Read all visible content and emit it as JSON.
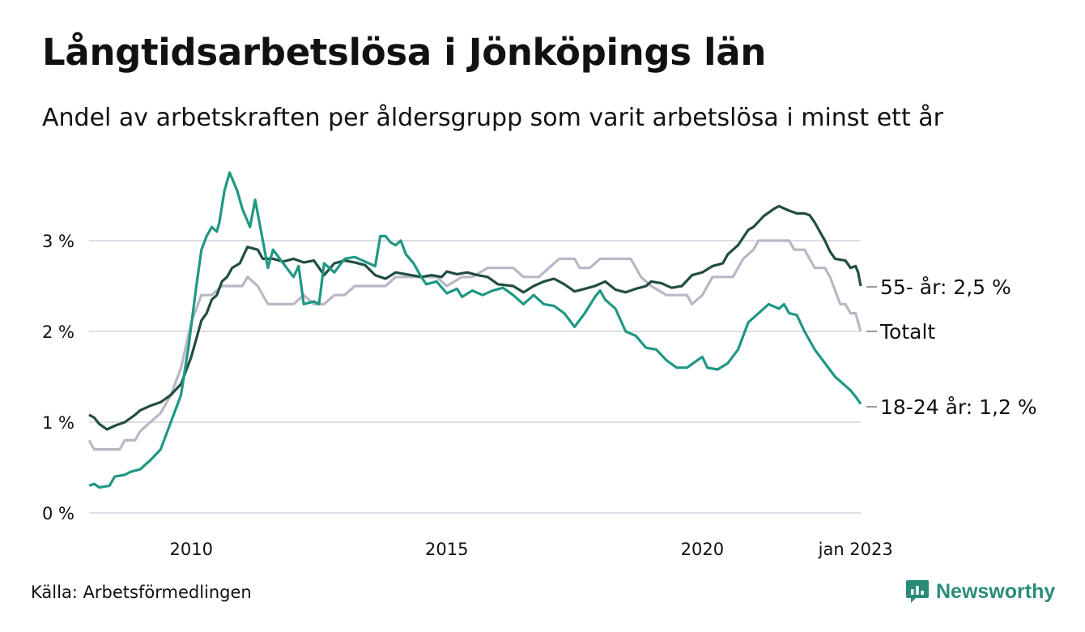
{
  "title": "Långtidsarbetslösa i Jönköpings län",
  "subtitle": "Andel av arbetskraften per åldersgrupp som varit arbetslösa i minst ett år",
  "source": "Källa: Arbetsförmedlingen",
  "brand": "Newsworthy",
  "chart_data": {
    "type": "line",
    "ylim": [
      0,
      3.4
    ],
    "y_ticks": [
      {
        "value": 0,
        "label": "0 %"
      },
      {
        "value": 1,
        "label": "1 %"
      },
      {
        "value": 2,
        "label": "2 %"
      },
      {
        "value": 3,
        "label": "3 %"
      }
    ],
    "x_ticks": [
      {
        "value": 2010.0,
        "label": "2010"
      },
      {
        "value": 2015.0,
        "label": "2015"
      },
      {
        "value": 2020.0,
        "label": "2020"
      },
      {
        "value": 2023.0,
        "label": "jan 2023"
      }
    ],
    "xlim": [
      2008.0,
      2023.1
    ],
    "grid": true,
    "series": [
      {
        "name": "Totalt",
        "end_label": "Totalt",
        "color": "#b9b7c6",
        "points": [
          [
            2008.0,
            0.8
          ],
          [
            2008.1,
            0.7
          ],
          [
            2008.6,
            0.7
          ],
          [
            2008.7,
            0.8
          ],
          [
            2008.9,
            0.8
          ],
          [
            2009.0,
            0.9
          ],
          [
            2009.2,
            1.0
          ],
          [
            2009.4,
            1.1
          ],
          [
            2009.6,
            1.3
          ],
          [
            2009.8,
            1.6
          ],
          [
            2010.0,
            2.1
          ],
          [
            2010.2,
            2.4
          ],
          [
            2010.4,
            2.4
          ],
          [
            2010.6,
            2.5
          ],
          [
            2011.0,
            2.5
          ],
          [
            2011.1,
            2.6
          ],
          [
            2011.3,
            2.5
          ],
          [
            2011.5,
            2.3
          ],
          [
            2012.0,
            2.3
          ],
          [
            2012.2,
            2.4
          ],
          [
            2012.4,
            2.3
          ],
          [
            2012.6,
            2.3
          ],
          [
            2012.8,
            2.4
          ],
          [
            2013.0,
            2.4
          ],
          [
            2013.2,
            2.5
          ],
          [
            2013.8,
            2.5
          ],
          [
            2014.0,
            2.6
          ],
          [
            2014.8,
            2.6
          ],
          [
            2015.0,
            2.5
          ],
          [
            2015.3,
            2.6
          ],
          [
            2015.5,
            2.6
          ],
          [
            2015.8,
            2.7
          ],
          [
            2016.3,
            2.7
          ],
          [
            2016.5,
            2.6
          ],
          [
            2016.8,
            2.6
          ],
          [
            2017.0,
            2.7
          ],
          [
            2017.2,
            2.8
          ],
          [
            2017.5,
            2.8
          ],
          [
            2017.6,
            2.7
          ],
          [
            2017.8,
            2.7
          ],
          [
            2018.0,
            2.8
          ],
          [
            2018.6,
            2.8
          ],
          [
            2018.8,
            2.6
          ],
          [
            2019.0,
            2.5
          ],
          [
            2019.3,
            2.4
          ],
          [
            2019.7,
            2.4
          ],
          [
            2019.8,
            2.3
          ],
          [
            2020.0,
            2.4
          ],
          [
            2020.2,
            2.6
          ],
          [
            2020.6,
            2.6
          ],
          [
            2020.8,
            2.8
          ],
          [
            2021.0,
            2.9
          ],
          [
            2021.1,
            3.0
          ],
          [
            2021.7,
            3.0
          ],
          [
            2021.8,
            2.9
          ],
          [
            2022.0,
            2.9
          ],
          [
            2022.1,
            2.8
          ],
          [
            2022.2,
            2.7
          ],
          [
            2022.4,
            2.7
          ],
          [
            2022.5,
            2.6
          ],
          [
            2022.7,
            2.3
          ],
          [
            2022.8,
            2.3
          ],
          [
            2022.9,
            2.2
          ],
          [
            2023.0,
            2.2
          ],
          [
            2023.1,
            2.0
          ]
        ]
      },
      {
        "name": "55- år",
        "end_label": "55- år: 2,5 %",
        "color": "#224d42",
        "points": [
          [
            2008.0,
            1.08
          ],
          [
            2008.1,
            1.05
          ],
          [
            2008.2,
            0.98
          ],
          [
            2008.35,
            0.92
          ],
          [
            2008.5,
            0.96
          ],
          [
            2008.7,
            1.0
          ],
          [
            2008.9,
            1.08
          ],
          [
            2009.0,
            1.13
          ],
          [
            2009.2,
            1.18
          ],
          [
            2009.4,
            1.22
          ],
          [
            2009.6,
            1.3
          ],
          [
            2009.8,
            1.42
          ],
          [
            2010.0,
            1.72
          ],
          [
            2010.2,
            2.12
          ],
          [
            2010.3,
            2.2
          ],
          [
            2010.4,
            2.35
          ],
          [
            2010.5,
            2.4
          ],
          [
            2010.6,
            2.55
          ],
          [
            2010.7,
            2.6
          ],
          [
            2010.8,
            2.7
          ],
          [
            2010.95,
            2.75
          ],
          [
            2011.1,
            2.93
          ],
          [
            2011.3,
            2.9
          ],
          [
            2011.4,
            2.8
          ],
          [
            2011.6,
            2.8
          ],
          [
            2011.8,
            2.77
          ],
          [
            2012.0,
            2.8
          ],
          [
            2012.2,
            2.76
          ],
          [
            2012.4,
            2.78
          ],
          [
            2012.6,
            2.62
          ],
          [
            2012.8,
            2.75
          ],
          [
            2013.0,
            2.78
          ],
          [
            2013.2,
            2.76
          ],
          [
            2013.4,
            2.73
          ],
          [
            2013.6,
            2.62
          ],
          [
            2013.8,
            2.58
          ],
          [
            2014.0,
            2.65
          ],
          [
            2014.3,
            2.62
          ],
          [
            2014.5,
            2.6
          ],
          [
            2014.7,
            2.62
          ],
          [
            2014.9,
            2.6
          ],
          [
            2015.0,
            2.66
          ],
          [
            2015.2,
            2.63
          ],
          [
            2015.4,
            2.65
          ],
          [
            2015.6,
            2.62
          ],
          [
            2015.8,
            2.6
          ],
          [
            2016.0,
            2.52
          ],
          [
            2016.3,
            2.5
          ],
          [
            2016.5,
            2.43
          ],
          [
            2016.7,
            2.5
          ],
          [
            2016.9,
            2.55
          ],
          [
            2017.1,
            2.58
          ],
          [
            2017.3,
            2.52
          ],
          [
            2017.5,
            2.44
          ],
          [
            2017.7,
            2.47
          ],
          [
            2017.9,
            2.5
          ],
          [
            2018.1,
            2.55
          ],
          [
            2018.3,
            2.46
          ],
          [
            2018.5,
            2.43
          ],
          [
            2018.7,
            2.47
          ],
          [
            2018.9,
            2.5
          ],
          [
            2019.0,
            2.55
          ],
          [
            2019.2,
            2.53
          ],
          [
            2019.4,
            2.48
          ],
          [
            2019.6,
            2.5
          ],
          [
            2019.8,
            2.62
          ],
          [
            2020.0,
            2.65
          ],
          [
            2020.2,
            2.72
          ],
          [
            2020.4,
            2.75
          ],
          [
            2020.5,
            2.85
          ],
          [
            2020.7,
            2.95
          ],
          [
            2020.9,
            3.12
          ],
          [
            2021.0,
            3.15
          ],
          [
            2021.2,
            3.27
          ],
          [
            2021.4,
            3.35
          ],
          [
            2021.5,
            3.38
          ],
          [
            2021.7,
            3.33
          ],
          [
            2021.85,
            3.3
          ],
          [
            2022.0,
            3.3
          ],
          [
            2022.1,
            3.28
          ],
          [
            2022.2,
            3.2
          ],
          [
            2022.3,
            3.1
          ],
          [
            2022.4,
            3.0
          ],
          [
            2022.5,
            2.88
          ],
          [
            2022.6,
            2.8
          ],
          [
            2022.8,
            2.78
          ],
          [
            2022.9,
            2.7
          ],
          [
            2023.0,
            2.72
          ],
          [
            2023.05,
            2.65
          ],
          [
            2023.1,
            2.5
          ]
        ]
      },
      {
        "name": "18-24 år",
        "end_label": "18-24 år: 1,2 %",
        "color": "#1f9884",
        "points": [
          [
            2008.0,
            0.3
          ],
          [
            2008.1,
            0.32
          ],
          [
            2008.2,
            0.28
          ],
          [
            2008.4,
            0.3
          ],
          [
            2008.5,
            0.4
          ],
          [
            2008.7,
            0.42
          ],
          [
            2008.8,
            0.45
          ],
          [
            2009.0,
            0.48
          ],
          [
            2009.2,
            0.58
          ],
          [
            2009.4,
            0.7
          ],
          [
            2009.6,
            1.0
          ],
          [
            2009.8,
            1.3
          ],
          [
            2009.95,
            1.85
          ],
          [
            2010.1,
            2.5
          ],
          [
            2010.2,
            2.9
          ],
          [
            2010.3,
            3.05
          ],
          [
            2010.4,
            3.15
          ],
          [
            2010.5,
            3.1
          ],
          [
            2010.55,
            3.2
          ],
          [
            2010.65,
            3.55
          ],
          [
            2010.75,
            3.75
          ],
          [
            2010.9,
            3.55
          ],
          [
            2011.0,
            3.35
          ],
          [
            2011.15,
            3.15
          ],
          [
            2011.25,
            3.45
          ],
          [
            2011.4,
            3.0
          ],
          [
            2011.5,
            2.7
          ],
          [
            2011.6,
            2.9
          ],
          [
            2011.8,
            2.75
          ],
          [
            2012.0,
            2.6
          ],
          [
            2012.1,
            2.72
          ],
          [
            2012.2,
            2.3
          ],
          [
            2012.4,
            2.33
          ],
          [
            2012.5,
            2.3
          ],
          [
            2012.6,
            2.75
          ],
          [
            2012.8,
            2.65
          ],
          [
            2013.0,
            2.8
          ],
          [
            2013.2,
            2.82
          ],
          [
            2013.4,
            2.77
          ],
          [
            2013.6,
            2.72
          ],
          [
            2013.7,
            3.05
          ],
          [
            2013.8,
            3.05
          ],
          [
            2013.9,
            2.98
          ],
          [
            2014.0,
            2.95
          ],
          [
            2014.1,
            3.0
          ],
          [
            2014.2,
            2.85
          ],
          [
            2014.35,
            2.75
          ],
          [
            2014.5,
            2.6
          ],
          [
            2014.6,
            2.52
          ],
          [
            2014.8,
            2.55
          ],
          [
            2015.0,
            2.42
          ],
          [
            2015.2,
            2.47
          ],
          [
            2015.3,
            2.38
          ],
          [
            2015.5,
            2.45
          ],
          [
            2015.7,
            2.4
          ],
          [
            2015.9,
            2.45
          ],
          [
            2016.1,
            2.48
          ],
          [
            2016.3,
            2.4
          ],
          [
            2016.5,
            2.3
          ],
          [
            2016.7,
            2.4
          ],
          [
            2016.9,
            2.3
          ],
          [
            2017.1,
            2.28
          ],
          [
            2017.3,
            2.2
          ],
          [
            2017.5,
            2.05
          ],
          [
            2017.7,
            2.2
          ],
          [
            2017.9,
            2.38
          ],
          [
            2018.0,
            2.45
          ],
          [
            2018.1,
            2.35
          ],
          [
            2018.3,
            2.25
          ],
          [
            2018.5,
            2.0
          ],
          [
            2018.7,
            1.95
          ],
          [
            2018.9,
            1.82
          ],
          [
            2019.1,
            1.8
          ],
          [
            2019.3,
            1.68
          ],
          [
            2019.5,
            1.6
          ],
          [
            2019.7,
            1.6
          ],
          [
            2019.9,
            1.68
          ],
          [
            2020.0,
            1.72
          ],
          [
            2020.1,
            1.6
          ],
          [
            2020.3,
            1.58
          ],
          [
            2020.5,
            1.65
          ],
          [
            2020.7,
            1.8
          ],
          [
            2020.9,
            2.1
          ],
          [
            2021.1,
            2.2
          ],
          [
            2021.3,
            2.3
          ],
          [
            2021.5,
            2.25
          ],
          [
            2021.6,
            2.3
          ],
          [
            2021.7,
            2.2
          ],
          [
            2021.85,
            2.18
          ],
          [
            2022.0,
            2.0
          ],
          [
            2022.2,
            1.8
          ],
          [
            2022.4,
            1.65
          ],
          [
            2022.6,
            1.5
          ],
          [
            2022.8,
            1.4
          ],
          [
            2022.9,
            1.35
          ],
          [
            2023.0,
            1.28
          ],
          [
            2023.1,
            1.2
          ]
        ]
      }
    ]
  }
}
